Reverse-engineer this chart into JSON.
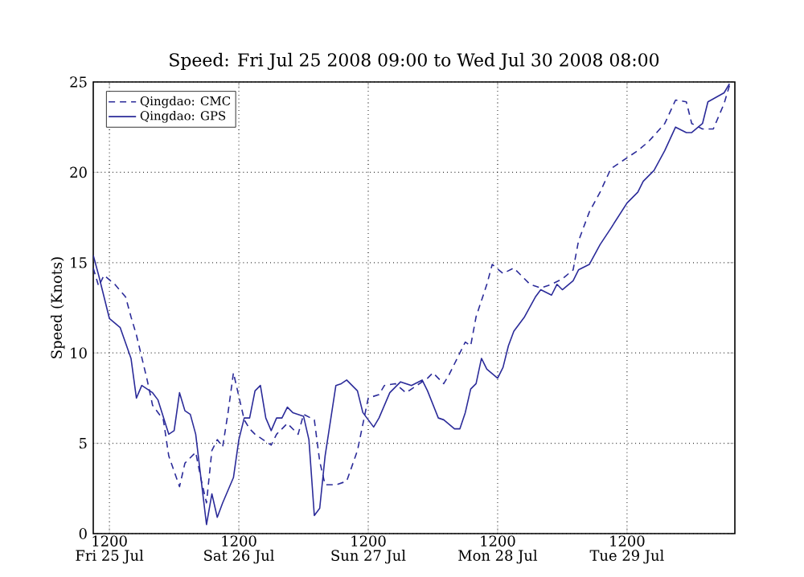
{
  "chart_data": {
    "type": "line",
    "title": "Speed: Fri Jul 25 2008 09:00 to Wed Jul 30 2008 08:00",
    "ylabel": "Speed (Knots)",
    "xlim": [
      "2008-07-25T09:00",
      "2008-07-30T08:00"
    ],
    "ylim": [
      0,
      25
    ],
    "yticks": [
      0,
      5,
      10,
      15,
      20,
      25
    ],
    "xticks": [
      {
        "value": "2008-07-25T12:00",
        "label": "1200\nFri 25 Jul"
      },
      {
        "value": "2008-07-26T12:00",
        "label": "1200\nSat 26 Jul"
      },
      {
        "value": "2008-07-27T12:00",
        "label": "1200\nSun 27 Jul"
      },
      {
        "value": "2008-07-28T12:00",
        "label": "1200\nMon 28 Jul"
      },
      {
        "value": "2008-07-29T12:00",
        "label": "1200\nTue 29 Jul"
      }
    ],
    "grid": true,
    "legend": "top left",
    "marker": "none",
    "series": [
      {
        "name": "Qingdao: CMC",
        "color": "#2b2b99",
        "line_style": "dashed",
        "x": [
          "2008-07-25T09:00",
          "2008-07-25T10:00",
          "2008-07-25T11:00",
          "2008-07-25T13:00",
          "2008-07-25T15:00",
          "2008-07-25T16:00",
          "2008-07-25T17:00",
          "2008-07-25T19:00",
          "2008-07-25T20:00",
          "2008-07-25T22:00",
          "2008-07-25T23:00",
          "2008-07-26T01:00",
          "2008-07-26T02:00",
          "2008-07-26T04:00",
          "2008-07-26T05:00",
          "2008-07-26T06:00",
          "2008-07-26T07:00",
          "2008-07-26T08:00",
          "2008-07-26T09:00",
          "2008-07-26T10:00",
          "2008-07-26T11:00",
          "2008-07-26T12:00",
          "2008-07-26T13:00",
          "2008-07-26T14:00",
          "2008-07-26T15:00",
          "2008-07-26T18:00",
          "2008-07-26T19:00",
          "2008-07-26T21:00",
          "2008-07-26T23:00",
          "2008-07-27T00:00",
          "2008-07-27T02:00",
          "2008-07-27T03:00",
          "2008-07-27T04:00",
          "2008-07-27T06:00",
          "2008-07-27T08:00",
          "2008-07-27T10:00",
          "2008-07-27T12:00",
          "2008-07-27T14:00",
          "2008-07-27T15:00",
          "2008-07-27T17:00",
          "2008-07-27T19:00",
          "2008-07-27T21:00",
          "2008-07-27T23:00",
          "2008-07-28T00:00",
          "2008-07-28T02:00",
          "2008-07-28T03:00",
          "2008-07-28T05:00",
          "2008-07-28T06:00",
          "2008-07-28T07:00",
          "2008-07-28T08:00",
          "2008-07-28T10:00",
          "2008-07-28T11:00",
          "2008-07-28T13:00",
          "2008-07-28T15:00",
          "2008-07-28T16:00",
          "2008-07-28T18:00",
          "2008-07-28T20:00",
          "2008-07-28T22:00",
          "2008-07-29T00:00",
          "2008-07-29T02:00",
          "2008-07-29T03:00",
          "2008-07-29T05:00",
          "2008-07-29T07:00",
          "2008-07-29T09:00",
          "2008-07-29T12:00",
          "2008-07-29T14:00",
          "2008-07-29T16:00",
          "2008-07-29T19:00",
          "2008-07-29T21:00",
          "2008-07-29T23:00",
          "2008-07-30T00:00",
          "2008-07-30T02:00",
          "2008-07-30T04:00",
          "2008-07-30T06:00",
          "2008-07-30T07:00"
        ],
        "values": [
          14.7,
          13.7,
          14.3,
          13.8,
          13.1,
          12.0,
          11.0,
          8.5,
          7.1,
          6.3,
          4.3,
          2.6,
          3.9,
          4.5,
          3.0,
          1.7,
          4.6,
          5.2,
          4.8,
          6.7,
          8.9,
          7.6,
          6.3,
          5.8,
          5.5,
          4.9,
          5.5,
          6.1,
          5.5,
          6.6,
          6.3,
          4.0,
          2.7,
          2.7,
          2.9,
          4.6,
          7.5,
          7.7,
          8.2,
          8.3,
          7.8,
          8.2,
          8.6,
          8.9,
          8.3,
          8.8,
          10.0,
          10.6,
          10.4,
          12.0,
          13.8,
          14.9,
          14.4,
          14.7,
          14.4,
          13.8,
          13.6,
          13.8,
          14.1,
          14.6,
          16.2,
          17.8,
          18.9,
          20.2,
          20.8,
          21.2,
          21.7,
          22.7,
          24.0,
          23.9,
          22.7,
          22.4,
          22.4,
          23.8,
          24.8
        ]
      },
      {
        "name": "Qingdao: GPS",
        "color": "#2b2b99",
        "line_style": "solid",
        "x": [
          "2008-07-25T09:00",
          "2008-07-25T10:00",
          "2008-07-25T12:00",
          "2008-07-25T14:00",
          "2008-07-25T16:00",
          "2008-07-25T17:00",
          "2008-07-25T18:00",
          "2008-07-25T20:00",
          "2008-07-25T21:00",
          "2008-07-25T23:00",
          "2008-07-26T00:00",
          "2008-07-26T01:00",
          "2008-07-26T02:00",
          "2008-07-26T03:00",
          "2008-07-26T04:00",
          "2008-07-26T05:00",
          "2008-07-26T06:00",
          "2008-07-26T07:00",
          "2008-07-26T08:00",
          "2008-07-26T09:00",
          "2008-07-26T11:00",
          "2008-07-26T12:00",
          "2008-07-26T13:00",
          "2008-07-26T14:00",
          "2008-07-26T15:00",
          "2008-07-26T16:00",
          "2008-07-26T17:00",
          "2008-07-26T18:00",
          "2008-07-26T19:00",
          "2008-07-26T20:00",
          "2008-07-26T21:00",
          "2008-07-26T22:00",
          "2008-07-27T00:00",
          "2008-07-27T01:00",
          "2008-07-27T02:00",
          "2008-07-27T03:00",
          "2008-07-27T04:00",
          "2008-07-27T06:00",
          "2008-07-27T07:00",
          "2008-07-27T08:00",
          "2008-07-27T10:00",
          "2008-07-27T11:00",
          "2008-07-27T13:00",
          "2008-07-27T14:00",
          "2008-07-27T16:00",
          "2008-07-27T18:00",
          "2008-07-27T20:00",
          "2008-07-27T22:00",
          "2008-07-27T23:00",
          "2008-07-28T01:00",
          "2008-07-28T02:00",
          "2008-07-28T04:00",
          "2008-07-28T05:00",
          "2008-07-28T06:00",
          "2008-07-28T07:00",
          "2008-07-28T08:00",
          "2008-07-28T09:00",
          "2008-07-28T10:00",
          "2008-07-28T12:00",
          "2008-07-28T13:00",
          "2008-07-28T14:00",
          "2008-07-28T15:00",
          "2008-07-28T17:00",
          "2008-07-28T19:00",
          "2008-07-28T20:00",
          "2008-07-28T22:00",
          "2008-07-28T23:00",
          "2008-07-29T00:00",
          "2008-07-29T02:00",
          "2008-07-29T03:00",
          "2008-07-29T05:00",
          "2008-07-29T07:00",
          "2008-07-29T09:00",
          "2008-07-29T12:00",
          "2008-07-29T14:00",
          "2008-07-29T15:00",
          "2008-07-29T17:00",
          "2008-07-29T19:00",
          "2008-07-29T21:00",
          "2008-07-29T23:00",
          "2008-07-30T00:00",
          "2008-07-30T02:00",
          "2008-07-30T03:00",
          "2008-07-30T06:00",
          "2008-07-30T07:00"
        ],
        "values": [
          15.4,
          14.3,
          11.9,
          11.4,
          9.7,
          7.5,
          8.2,
          7.8,
          7.4,
          5.5,
          5.7,
          7.8,
          6.8,
          6.6,
          5.5,
          3.0,
          0.5,
          2.2,
          0.9,
          1.7,
          3.1,
          5.2,
          6.4,
          6.4,
          7.9,
          8.2,
          6.4,
          5.7,
          6.4,
          6.4,
          7.0,
          6.7,
          6.5,
          5.2,
          1.0,
          1.4,
          4.3,
          8.2,
          8.3,
          8.5,
          7.9,
          6.7,
          5.9,
          6.4,
          7.8,
          8.4,
          8.2,
          8.5,
          7.9,
          6.4,
          6.3,
          5.8,
          5.8,
          6.7,
          8.0,
          8.3,
          9.7,
          9.1,
          8.6,
          9.2,
          10.4,
          11.2,
          12.0,
          13.1,
          13.5,
          13.2,
          13.8,
          13.5,
          14.0,
          14.6,
          14.9,
          16.0,
          16.9,
          18.3,
          18.9,
          19.5,
          20.1,
          21.2,
          22.5,
          22.2,
          22.2,
          22.7,
          23.9,
          24.4,
          24.9
        ]
      }
    ]
  }
}
